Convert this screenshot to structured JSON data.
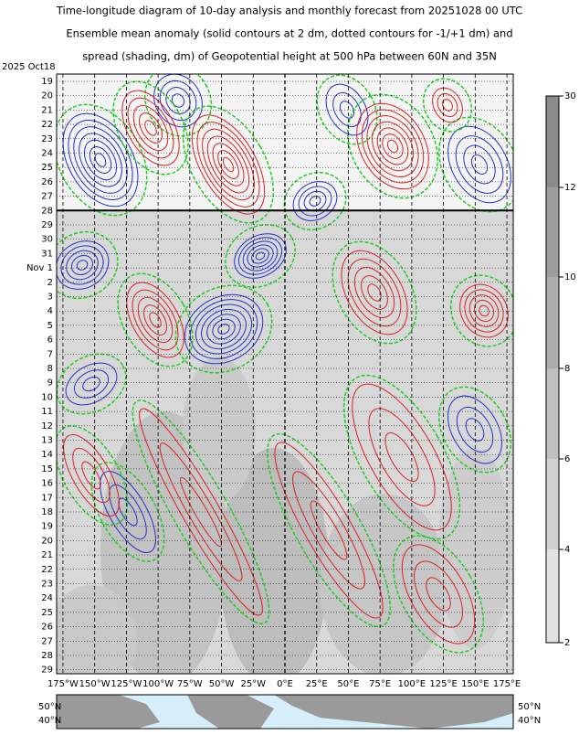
{
  "header": {
    "lines": [
      "Time-longitude diagram of 10-day analysis and monthly forecast from 20251028 00 UTC",
      "Ensemble mean anomaly (solid contours at 2 dm, dotted contours for -1/+1 dm) and",
      "spread (shading, dm) of Geopotential height at 500 hPa between 60N and 35N"
    ]
  },
  "start_label": "2025 Oct18",
  "date_labels": [
    "19",
    "20",
    "21",
    "22",
    "23",
    "24",
    "25",
    "26",
    "27",
    "28",
    "29",
    "30",
    "31",
    "Nov  1",
    "2",
    "3",
    "4",
    "5",
    "6",
    "7",
    "8",
    "9",
    "10",
    "11",
    "12",
    "13",
    "14",
    "15",
    "16",
    "17",
    "18",
    "19",
    "20",
    "21",
    "22",
    "23",
    "24",
    "25",
    "26",
    "27",
    "28",
    "29"
  ],
  "lon_labels": [
    "175°W",
    "150°W",
    "125°W",
    "100°W",
    "75°W",
    "50°W",
    "25°W",
    "0°E",
    "25°E",
    "50°E",
    "75°E",
    "100°E",
    "125°E",
    "150°E",
    "175°E"
  ],
  "colorbar_labels": [
    "30",
    "12",
    "10",
    "8",
    "6",
    "4",
    "2"
  ],
  "map_labels": {
    "left": [
      "50°N",
      "40°N"
    ],
    "right": [
      "50°N",
      "40°N"
    ]
  }
}
